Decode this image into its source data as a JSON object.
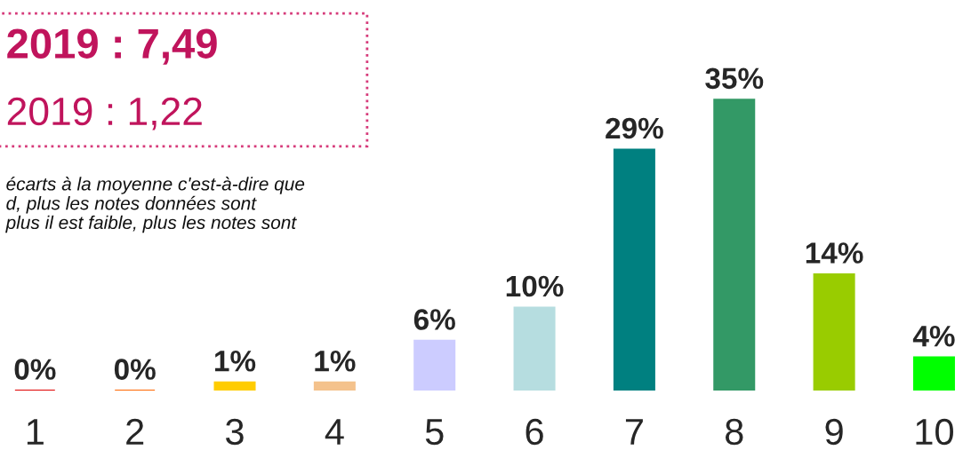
{
  "chart_data": {
    "type": "bar",
    "categories": [
      "1",
      "2",
      "3",
      "4",
      "5",
      "6",
      "7",
      "8",
      "9",
      "10"
    ],
    "values": [
      0,
      0,
      1,
      1,
      6,
      10,
      29,
      35,
      14,
      4
    ],
    "value_labels": [
      "0%",
      "0%",
      "1%",
      "1%",
      "6%",
      "10%",
      "29%",
      "35%",
      "14%",
      "4%"
    ],
    "colors": [
      "#e00000",
      "#ff6600",
      "#ffcc00",
      "#f4c28c",
      "#ccccff",
      "#b6dde0",
      "#008080",
      "#339966",
      "#99cc00",
      "#00ff00"
    ],
    "annotations": [
      "2019 : 7,49",
      "2019 : 1,22",
      "écarts à la moyenne c'est-à-dire que",
      "d, plus les notes données sont",
      "plus il est faible, plus les notes sont"
    ],
    "legend": false,
    "grid": false
  }
}
